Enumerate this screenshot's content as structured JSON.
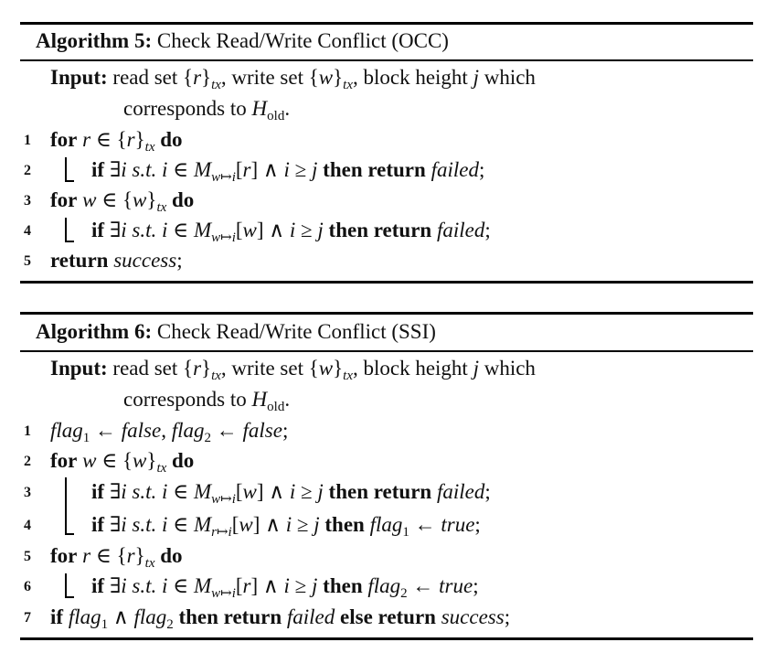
{
  "algorithm5": {
    "caption_label": "Algorithm 5:",
    "caption_title": "Check Read/Write Conflict (OCC)",
    "input_label": "Input:",
    "input_line1": "read set {r}tx, write set {w}tx, block height j which",
    "input_line2": "corresponds to Hold.",
    "lines": [
      {
        "num": "1",
        "text": "for r ∈ {r}tx do"
      },
      {
        "num": "2",
        "text": "if ∃i s.t. i ∈ Mw↦i[r] ∧ i ≥ j then return failed;"
      },
      {
        "num": "3",
        "text": "for w ∈ {w}tx do"
      },
      {
        "num": "4",
        "text": "if ∃i s.t. i ∈ Mw↦i[w] ∧ i ≥ j then return failed;"
      },
      {
        "num": "5",
        "text": "return success;"
      }
    ]
  },
  "algorithm6": {
    "caption_label": "Algorithm 6:",
    "caption_title": "Check Read/Write Conflict (SSI)",
    "input_label": "Input:",
    "input_line1": "read set {r}tx, write set {w}tx, block height j which",
    "input_line2": "corresponds to Hold.",
    "lines": [
      {
        "num": "1",
        "text": "flag1 ← false, flag2 ← false;"
      },
      {
        "num": "2",
        "text": "for w ∈ {w}tx do"
      },
      {
        "num": "3",
        "text": "if ∃i s.t. i ∈ Mw↦i[w] ∧ i ≥ j then return failed;"
      },
      {
        "num": "4",
        "text": "if ∃i s.t. i ∈ Mr↦i[w] ∧ i ≥ j then flag1 ← true;"
      },
      {
        "num": "5",
        "text": "for r ∈ {r}tx do"
      },
      {
        "num": "6",
        "text": "if ∃i s.t. i ∈ Mw↦i[r] ∧ i ≥ j then flag2 ← true;"
      },
      {
        "num": "7",
        "text": "if flag1 ∧ flag2 then return failed else return success;"
      }
    ]
  }
}
